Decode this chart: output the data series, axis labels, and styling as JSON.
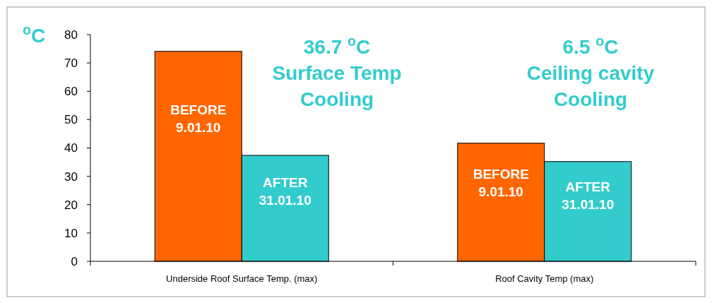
{
  "chart_data": {
    "type": "bar",
    "ylabel": "$^{o}$C",
    "categories": [
      "Underside Roof Surface Temp. (max)",
      "Roof Cavity Temp (max)"
    ],
    "series": [
      {
        "name": "BEFORE 9.01.10",
        "color": "#ff6600",
        "values": [
          74.1,
          41.7
        ]
      },
      {
        "name": "AFTER 31.01.10",
        "color": "#33cccc",
        "values": [
          37.4,
          35.2
        ]
      }
    ],
    "ylim": [
      0,
      80
    ],
    "yticks": [
      0,
      10,
      20,
      30,
      40,
      50,
      60,
      70,
      80
    ],
    "grid": false,
    "annotations": [
      "36.7 $^{o}$C\nSurface Temp\nCooling",
      "6.5 $^{o}$C\nCeiling cavity\nCooling"
    ]
  }
}
